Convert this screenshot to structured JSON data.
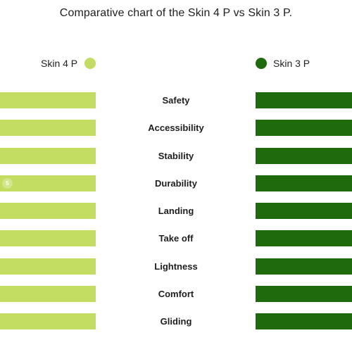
{
  "chart_data": {
    "type": "bar",
    "title": "Comparative chart of the Skin 4 P vs Skin 3 P.",
    "categories": [
      "Safety",
      "Accessibility",
      "Stability",
      "Durability",
      "Landing",
      "Take off",
      "Lightness",
      "Comfort",
      "Gliding"
    ],
    "series": [
      {
        "name": "Skin 4 P",
        "color": "#c3dc62",
        "values": [
          null,
          null,
          null,
          5,
          null,
          null,
          null,
          null,
          null
        ],
        "visible_labels": [
          null,
          null,
          null,
          "5",
          null,
          null,
          null,
          null,
          null
        ]
      },
      {
        "name": "Skin 3 P",
        "color": "#1f6a0c",
        "values": [
          null,
          null,
          null,
          null,
          null,
          null,
          null,
          null,
          null
        ]
      }
    ],
    "legend": "top",
    "grid": false
  }
}
